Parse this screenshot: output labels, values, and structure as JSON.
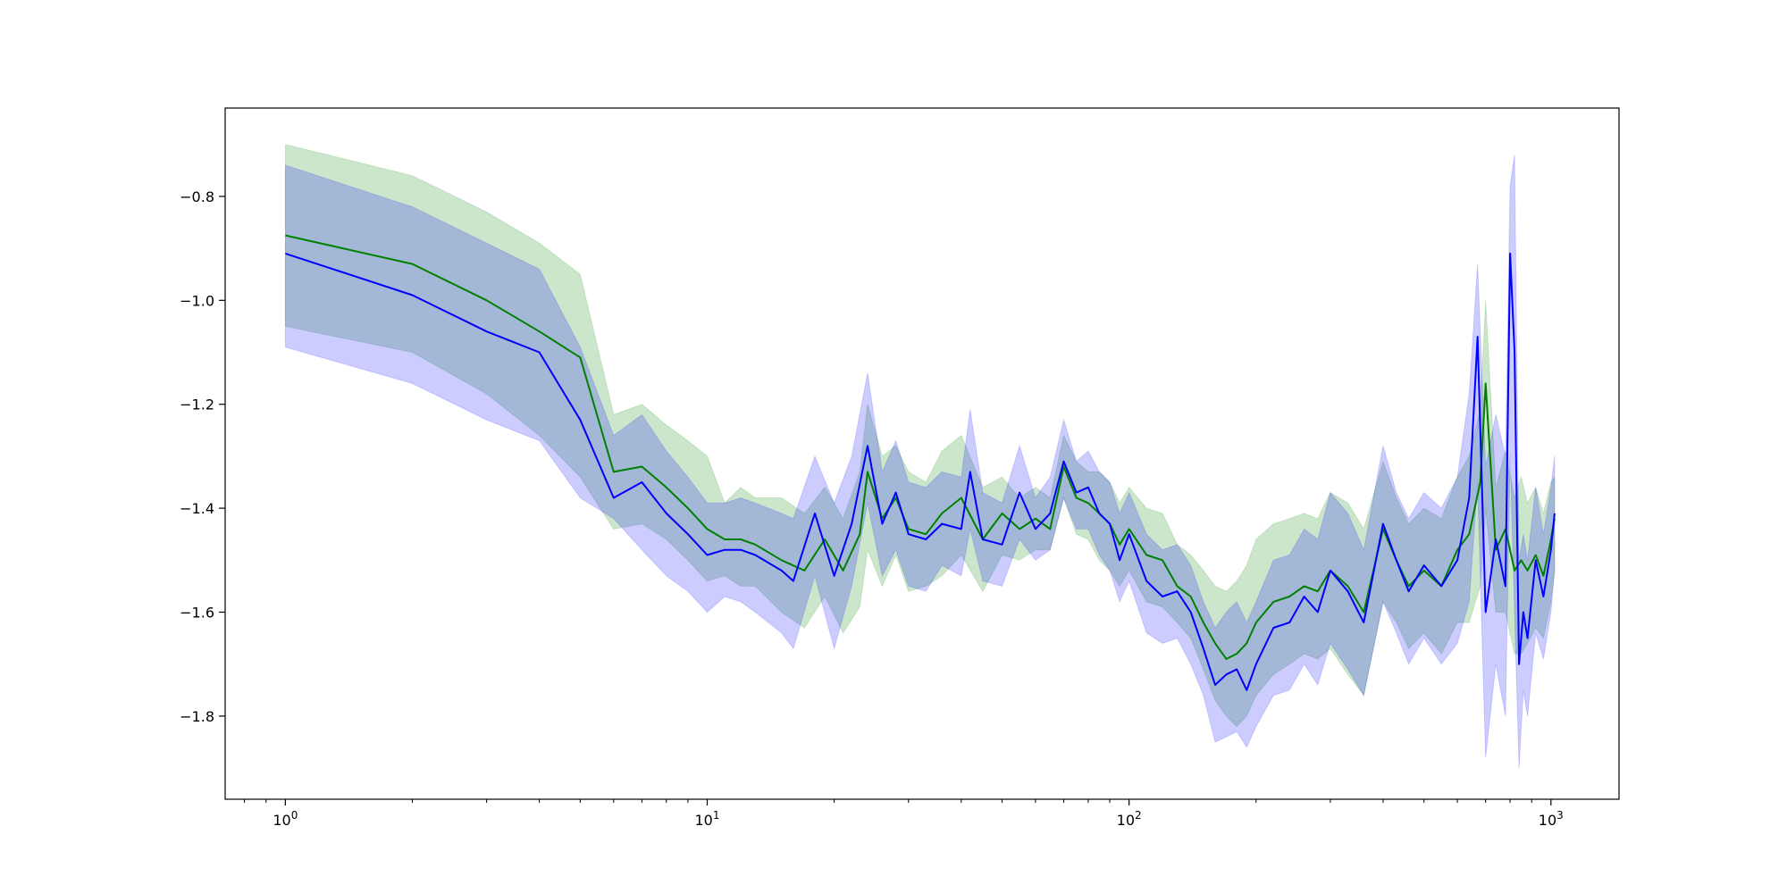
{
  "chart_data": {
    "type": "line",
    "title": "",
    "xlabel": "",
    "ylabel": "",
    "x_scale": "log",
    "xlim": [
      0.72,
      1450
    ],
    "ylim": [
      -1.96,
      -0.63
    ],
    "grid": false,
    "legend": false,
    "x_ticks": [
      {
        "value": 1,
        "base": "10",
        "exp": "0"
      },
      {
        "value": 10,
        "base": "10",
        "exp": "1"
      },
      {
        "value": 100,
        "base": "10",
        "exp": "2"
      },
      {
        "value": 1000,
        "base": "10",
        "exp": "3"
      }
    ],
    "y_ticks": [
      {
        "value": -1.8,
        "label": "−1.8"
      },
      {
        "value": -1.6,
        "label": "−1.6"
      },
      {
        "value": -1.4,
        "label": "−1.4"
      },
      {
        "value": -1.2,
        "label": "−1.2"
      },
      {
        "value": -1.0,
        "label": "−1.0"
      },
      {
        "value": -0.8,
        "label": "−0.8"
      }
    ],
    "series": [
      {
        "color": "#008000",
        "band_color": "#008000",
        "band_opacity": 0.2,
        "x": [
          1,
          2,
          3,
          4,
          5,
          6,
          7,
          8,
          9,
          10,
          11,
          12,
          13,
          15,
          17,
          19,
          21,
          23,
          24,
          26,
          28,
          30,
          33,
          36,
          40,
          45,
          50,
          55,
          60,
          65,
          70,
          75,
          80,
          85,
          90,
          95,
          100,
          110,
          120,
          130,
          140,
          150,
          160,
          170,
          180,
          190,
          200,
          220,
          240,
          260,
          280,
          300,
          330,
          360,
          400,
          430,
          460,
          500,
          550,
          600,
          640,
          680,
          700,
          740,
          780,
          820,
          850,
          880,
          920,
          960,
          1000,
          1020
        ],
        "y": [
          -0.875,
          -0.93,
          -1.0,
          -1.06,
          -1.11,
          -1.33,
          -1.32,
          -1.36,
          -1.4,
          -1.44,
          -1.46,
          -1.46,
          -1.47,
          -1.5,
          -1.52,
          -1.46,
          -1.52,
          -1.45,
          -1.33,
          -1.42,
          -1.38,
          -1.44,
          -1.45,
          -1.41,
          -1.38,
          -1.46,
          -1.41,
          -1.44,
          -1.42,
          -1.44,
          -1.32,
          -1.38,
          -1.39,
          -1.41,
          -1.43,
          -1.47,
          -1.44,
          -1.49,
          -1.5,
          -1.55,
          -1.57,
          -1.62,
          -1.66,
          -1.69,
          -1.68,
          -1.66,
          -1.62,
          -1.58,
          -1.57,
          -1.55,
          -1.56,
          -1.52,
          -1.55,
          -1.6,
          -1.44,
          -1.5,
          -1.55,
          -1.52,
          -1.55,
          -1.48,
          -1.45,
          -1.35,
          -1.16,
          -1.48,
          -1.44,
          -1.52,
          -1.5,
          -1.52,
          -1.49,
          -1.53,
          -1.46,
          -1.42
        ],
        "lower": [
          -1.05,
          -1.1,
          -1.18,
          -1.26,
          -1.34,
          -1.44,
          -1.43,
          -1.46,
          -1.5,
          -1.54,
          -1.53,
          -1.55,
          -1.55,
          -1.6,
          -1.63,
          -1.57,
          -1.64,
          -1.59,
          -1.48,
          -1.55,
          -1.49,
          -1.56,
          -1.55,
          -1.53,
          -1.49,
          -1.56,
          -1.49,
          -1.5,
          -1.48,
          -1.48,
          -1.38,
          -1.45,
          -1.46,
          -1.5,
          -1.52,
          -1.55,
          -1.52,
          -1.58,
          -1.59,
          -1.62,
          -1.65,
          -1.71,
          -1.77,
          -1.8,
          -1.82,
          -1.8,
          -1.76,
          -1.72,
          -1.7,
          -1.68,
          -1.69,
          -1.67,
          -1.72,
          -1.76,
          -1.58,
          -1.62,
          -1.67,
          -1.64,
          -1.68,
          -1.62,
          -1.62,
          -1.55,
          -1.4,
          -1.6,
          -1.6,
          -1.68,
          -1.68,
          -1.66,
          -1.63,
          -1.65,
          -1.58,
          -1.52
        ],
        "upper": [
          -0.7,
          -0.76,
          -0.83,
          -0.89,
          -0.95,
          -1.22,
          -1.2,
          -1.24,
          -1.27,
          -1.3,
          -1.39,
          -1.36,
          -1.38,
          -1.38,
          -1.41,
          -1.36,
          -1.42,
          -1.33,
          -1.2,
          -1.3,
          -1.28,
          -1.33,
          -1.35,
          -1.29,
          -1.26,
          -1.36,
          -1.34,
          -1.38,
          -1.36,
          -1.38,
          -1.26,
          -1.31,
          -1.33,
          -1.33,
          -1.35,
          -1.39,
          -1.36,
          -1.4,
          -1.41,
          -1.47,
          -1.49,
          -1.52,
          -1.55,
          -1.56,
          -1.54,
          -1.51,
          -1.46,
          -1.43,
          -1.42,
          -1.41,
          -1.42,
          -1.37,
          -1.39,
          -1.44,
          -1.31,
          -1.38,
          -1.43,
          -1.4,
          -1.42,
          -1.34,
          -1.3,
          -1.21,
          -1.0,
          -1.36,
          -1.29,
          -1.38,
          -1.34,
          -1.39,
          -1.36,
          -1.41,
          -1.35,
          -1.34
        ]
      },
      {
        "color": "#0000ff",
        "band_color": "#0000ff",
        "band_opacity": 0.2,
        "x": [
          1,
          2,
          3,
          4,
          5,
          6,
          7,
          8,
          9,
          10,
          11,
          12,
          13,
          15,
          16,
          18,
          20,
          22,
          24,
          26,
          28,
          30,
          33,
          36,
          40,
          42,
          45,
          50,
          55,
          60,
          65,
          70,
          75,
          80,
          85,
          90,
          95,
          100,
          110,
          120,
          130,
          140,
          150,
          160,
          170,
          180,
          190,
          200,
          220,
          240,
          260,
          280,
          300,
          330,
          360,
          400,
          430,
          460,
          500,
          550,
          600,
          640,
          670,
          700,
          740,
          780,
          800,
          820,
          840,
          860,
          880,
          920,
          960,
          1000,
          1020
        ],
        "y": [
          -0.91,
          -0.99,
          -1.06,
          -1.1,
          -1.23,
          -1.38,
          -1.35,
          -1.41,
          -1.45,
          -1.49,
          -1.48,
          -1.48,
          -1.49,
          -1.52,
          -1.54,
          -1.41,
          -1.53,
          -1.43,
          -1.28,
          -1.43,
          -1.37,
          -1.45,
          -1.46,
          -1.43,
          -1.44,
          -1.33,
          -1.46,
          -1.47,
          -1.37,
          -1.44,
          -1.41,
          -1.31,
          -1.37,
          -1.36,
          -1.41,
          -1.43,
          -1.5,
          -1.45,
          -1.54,
          -1.57,
          -1.56,
          -1.6,
          -1.67,
          -1.74,
          -1.72,
          -1.71,
          -1.75,
          -1.7,
          -1.63,
          -1.62,
          -1.57,
          -1.6,
          -1.52,
          -1.56,
          -1.62,
          -1.43,
          -1.5,
          -1.56,
          -1.51,
          -1.55,
          -1.5,
          -1.38,
          -1.07,
          -1.6,
          -1.46,
          -1.55,
          -0.91,
          -1.1,
          -1.7,
          -1.6,
          -1.65,
          -1.5,
          -1.57,
          -1.48,
          -1.41
        ],
        "lower": [
          -1.09,
          -1.16,
          -1.23,
          -1.27,
          -1.38,
          -1.42,
          -1.48,
          -1.53,
          -1.56,
          -1.6,
          -1.57,
          -1.58,
          -1.6,
          -1.64,
          -1.67,
          -1.53,
          -1.67,
          -1.55,
          -1.39,
          -1.53,
          -1.48,
          -1.55,
          -1.56,
          -1.51,
          -1.53,
          -1.44,
          -1.54,
          -1.55,
          -1.46,
          -1.5,
          -1.48,
          -1.38,
          -1.44,
          -1.44,
          -1.49,
          -1.52,
          -1.58,
          -1.54,
          -1.64,
          -1.66,
          -1.65,
          -1.7,
          -1.76,
          -1.85,
          -1.84,
          -1.83,
          -1.86,
          -1.82,
          -1.76,
          -1.75,
          -1.7,
          -1.74,
          -1.66,
          -1.71,
          -1.76,
          -1.58,
          -1.64,
          -1.7,
          -1.65,
          -1.7,
          -1.66,
          -1.58,
          -1.35,
          -1.88,
          -1.7,
          -1.8,
          -1.3,
          -1.6,
          -1.9,
          -1.75,
          -1.8,
          -1.64,
          -1.69,
          -1.6,
          -1.52
        ],
        "upper": [
          -0.74,
          -0.82,
          -0.89,
          -0.94,
          -1.09,
          -1.26,
          -1.22,
          -1.29,
          -1.34,
          -1.39,
          -1.39,
          -1.38,
          -1.39,
          -1.41,
          -1.42,
          -1.3,
          -1.39,
          -1.3,
          -1.14,
          -1.33,
          -1.27,
          -1.35,
          -1.36,
          -1.33,
          -1.34,
          -1.21,
          -1.37,
          -1.39,
          -1.28,
          -1.38,
          -1.34,
          -1.23,
          -1.31,
          -1.29,
          -1.33,
          -1.35,
          -1.41,
          -1.37,
          -1.45,
          -1.48,
          -1.47,
          -1.51,
          -1.58,
          -1.63,
          -1.6,
          -1.58,
          -1.62,
          -1.58,
          -1.5,
          -1.49,
          -1.44,
          -1.46,
          -1.37,
          -1.41,
          -1.48,
          -1.28,
          -1.37,
          -1.42,
          -1.37,
          -1.4,
          -1.34,
          -1.18,
          -0.93,
          -1.32,
          -1.22,
          -1.3,
          -0.78,
          -0.72,
          -1.5,
          -1.45,
          -1.5,
          -1.36,
          -1.45,
          -1.36,
          -1.3
        ]
      }
    ]
  }
}
